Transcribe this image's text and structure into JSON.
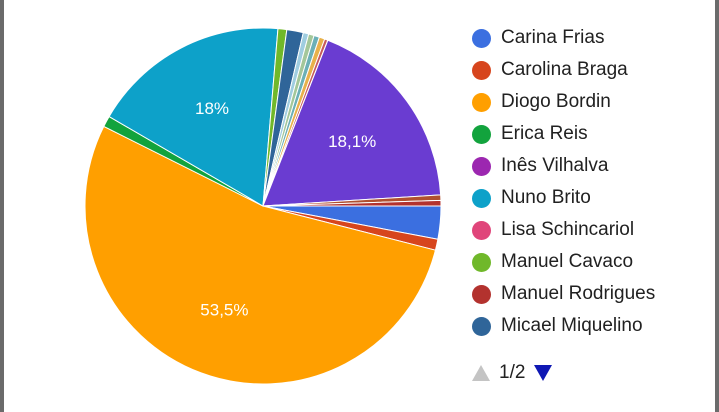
{
  "chart_data": {
    "type": "pie",
    "slices": [
      {
        "label": "Carina Frias",
        "value": 3.0,
        "color": "#3b6fe0"
      },
      {
        "label": "Carolina Braga",
        "value": 1.0,
        "color": "#d7451d"
      },
      {
        "label": "Diogo Bordin",
        "value": 53.5,
        "color": "#ff9f00",
        "data_label": "53,5%"
      },
      {
        "label": "Erica Reis",
        "value": 1.0,
        "color": "#12a33d"
      },
      {
        "label": "Nuno Brito",
        "value": 18.0,
        "color": "#0da1c9",
        "data_label": "18%"
      },
      {
        "label": "Manuel Cavaco",
        "value": 0.8,
        "color": "#70b82a"
      },
      {
        "label": "Micael Miquelino",
        "value": 1.5,
        "color": "#2f6599"
      },
      {
        "label": "",
        "value": 0.5,
        "color": "#9fcde0"
      },
      {
        "label": "",
        "value": 0.5,
        "color": "#a3c79a"
      },
      {
        "label": "",
        "value": 0.5,
        "color": "#6bb0b6"
      },
      {
        "label": "",
        "value": 0.5,
        "color": "#e8b14a"
      },
      {
        "label": "",
        "value": 0.3,
        "color": "#c75b5b"
      },
      {
        "label": "Inês Vilhalva",
        "value": 0.01,
        "color": "#9c27b0"
      },
      {
        "label": "",
        "value": 18.1,
        "color": "#6a3cd1",
        "data_label": "18,1%"
      },
      {
        "label": "",
        "value": 0.5,
        "color": "#b0502f"
      },
      {
        "label": "Manuel Rodrigues",
        "value": 0.5,
        "color": "#b3322e"
      }
    ],
    "legend": [
      {
        "label": "Carina Frias",
        "color": "#3b6fe0"
      },
      {
        "label": "Carolina Braga",
        "color": "#d7451d"
      },
      {
        "label": "Diogo Bordin",
        "color": "#ff9f00"
      },
      {
        "label": "Erica Reis",
        "color": "#12a33d"
      },
      {
        "label": "Inês Vilhalva",
        "color": "#9c27b0"
      },
      {
        "label": "Nuno Brito",
        "color": "#0da1c9"
      },
      {
        "label": "Lisa Schincariol",
        "color": "#e0457a"
      },
      {
        "label": "Manuel Cavaco",
        "color": "#70b82a"
      },
      {
        "label": "Manuel Rodrigues",
        "color": "#b3322e"
      },
      {
        "label": "Micael Miquelino",
        "color": "#2f6599"
      }
    ],
    "legend_placement": "right"
  },
  "pager": {
    "text": "1/2"
  }
}
